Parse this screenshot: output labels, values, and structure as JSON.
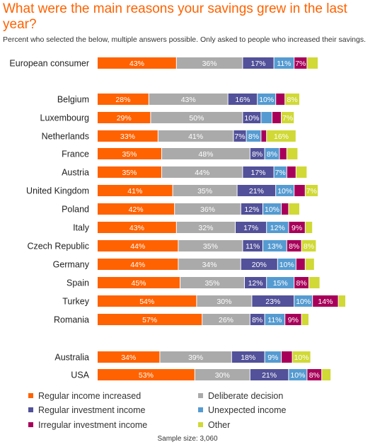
{
  "title": "What were the main reasons your savings grew in the last year?",
  "subtitle": "Percent who selected the below, multiple answers possible. Only asked to people who increased their savings.",
  "sample_size": "Sample size: 3,060",
  "colors": {
    "Regular income increased": "#ff6200",
    "Deliberate decision": "#aaaaaa",
    "Regular investment income": "#525199",
    "Unexpected income": "#559bd1",
    "Irregular investment income": "#a8005a",
    "Other": "#d0d935"
  },
  "chart_data": {
    "type": "bar",
    "orientation": "horizontal",
    "stacked": true,
    "categories": [
      "European consumer",
      "Belgium",
      "Luxembourg",
      "Netherlands",
      "France",
      "Austria",
      "United Kingdom",
      "Poland",
      "Italy",
      "Czech Republic",
      "Germany",
      "Spain",
      "Turkey",
      "Romania",
      "Australia",
      "USA"
    ],
    "series": [
      {
        "name": "Regular income increased",
        "values": [
          43,
          28,
          29,
          33,
          35,
          35,
          41,
          42,
          43,
          44,
          44,
          45,
          54,
          57,
          34,
          53
        ]
      },
      {
        "name": "Deliberate decision",
        "values": [
          36,
          43,
          50,
          41,
          48,
          44,
          35,
          36,
          32,
          35,
          34,
          35,
          30,
          26,
          39,
          30
        ]
      },
      {
        "name": "Regular investment income",
        "values": [
          17,
          16,
          10,
          7,
          8,
          17,
          21,
          12,
          17,
          11,
          20,
          12,
          23,
          8,
          18,
          21
        ]
      },
      {
        "name": "Unexpected income",
        "values": [
          11,
          10,
          6,
          8,
          8,
          7,
          10,
          10,
          12,
          13,
          10,
          15,
          10,
          11,
          9,
          10
        ]
      },
      {
        "name": "Irregular investment income",
        "values": [
          7,
          5,
          5,
          3,
          4,
          5,
          6,
          4,
          9,
          8,
          5,
          8,
          14,
          9,
          6,
          8
        ]
      },
      {
        "name": "Other",
        "values": [
          6,
          8,
          7,
          16,
          6,
          6,
          7,
          6,
          4,
          8,
          5,
          6,
          4,
          4,
          10,
          5
        ]
      }
    ],
    "xlim": [
      0,
      150
    ],
    "grid": false,
    "legend_position": "bottom"
  }
}
